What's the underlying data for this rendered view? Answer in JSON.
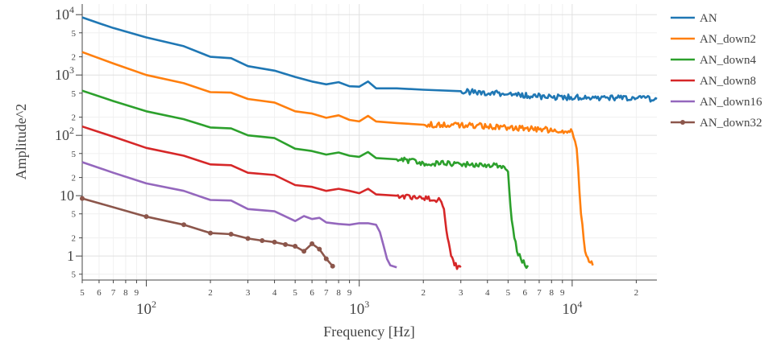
{
  "chart_data": {
    "type": "line",
    "xlabel": "Frequency [Hz]",
    "ylabel": "Amplitude^2",
    "x_scale": "log",
    "y_scale": "log",
    "xlim": [
      50,
      25000
    ],
    "ylim": [
      0.4,
      15000
    ],
    "grid": true,
    "legend_position": "top-right",
    "x_major_ticks": [
      {
        "value": 100,
        "base": "10",
        "exp": "2"
      },
      {
        "value": 1000,
        "base": "10",
        "exp": "3"
      },
      {
        "value": 10000,
        "base": "10",
        "exp": "4"
      }
    ],
    "x_minor_ticks": [
      {
        "value": 50,
        "label": "5"
      },
      {
        "value": 60,
        "label": "6"
      },
      {
        "value": 70,
        "label": "7"
      },
      {
        "value": 80,
        "label": "8"
      },
      {
        "value": 90,
        "label": "9"
      },
      {
        "value": 200,
        "label": "2"
      },
      {
        "value": 300,
        "label": "3"
      },
      {
        "value": 400,
        "label": "4"
      },
      {
        "value": 500,
        "label": "5"
      },
      {
        "value": 600,
        "label": "6"
      },
      {
        "value": 700,
        "label": "7"
      },
      {
        "value": 800,
        "label": "8"
      },
      {
        "value": 900,
        "label": "9"
      },
      {
        "value": 2000,
        "label": "2"
      },
      {
        "value": 3000,
        "label": "3"
      },
      {
        "value": 4000,
        "label": "4"
      },
      {
        "value": 5000,
        "label": "5"
      },
      {
        "value": 6000,
        "label": "6"
      },
      {
        "value": 7000,
        "label": "7"
      },
      {
        "value": 8000,
        "label": "8"
      },
      {
        "value": 9000,
        "label": "9"
      },
      {
        "value": 20000,
        "label": "2"
      }
    ],
    "y_major_ticks": [
      {
        "value": 1,
        "label": "1"
      },
      {
        "value": 10,
        "label": "10"
      },
      {
        "value": 100,
        "base": "10",
        "exp": "2"
      },
      {
        "value": 1000,
        "base": "10",
        "exp": "3"
      },
      {
        "value": 10000,
        "base": "10",
        "exp": "4"
      }
    ],
    "y_minor_ticks": [
      {
        "value": 0.5,
        "label": "5"
      },
      {
        "value": 2,
        "label": "2"
      },
      {
        "value": 5,
        "label": "5"
      },
      {
        "value": 20,
        "label": "2"
      },
      {
        "value": 50,
        "label": "5"
      },
      {
        "value": 200,
        "label": "2"
      },
      {
        "value": 500,
        "label": "5"
      },
      {
        "value": 2000,
        "label": "2"
      },
      {
        "value": 5000,
        "label": "5"
      }
    ],
    "series": [
      {
        "name": "AN",
        "color": "#1f77b4",
        "markers": false,
        "noise_from": 3000,
        "points": [
          [
            50,
            9000
          ],
          [
            60,
            7200
          ],
          [
            70,
            6000
          ],
          [
            100,
            4200
          ],
          [
            150,
            3000
          ],
          [
            200,
            2000
          ],
          [
            250,
            1900
          ],
          [
            300,
            1400
          ],
          [
            400,
            1180
          ],
          [
            500,
            930
          ],
          [
            600,
            780
          ],
          [
            700,
            700
          ],
          [
            800,
            760
          ],
          [
            900,
            650
          ],
          [
            1000,
            640
          ],
          [
            1100,
            780
          ],
          [
            1200,
            600
          ],
          [
            1500,
            600
          ],
          [
            2000,
            570
          ],
          [
            3000,
            540
          ],
          [
            5000,
            480
          ],
          [
            8000,
            430
          ],
          [
            12000,
            420
          ],
          [
            20000,
            410
          ],
          [
            25000,
            400
          ]
        ]
      },
      {
        "name": "AN_down2",
        "color": "#ff7f0e",
        "markers": false,
        "noise_from": 2000,
        "points": [
          [
            50,
            2400
          ],
          [
            70,
            1550
          ],
          [
            100,
            1000
          ],
          [
            150,
            730
          ],
          [
            200,
            520
          ],
          [
            250,
            510
          ],
          [
            300,
            400
          ],
          [
            400,
            350
          ],
          [
            500,
            250
          ],
          [
            600,
            230
          ],
          [
            700,
            195
          ],
          [
            800,
            215
          ],
          [
            900,
            180
          ],
          [
            1000,
            170
          ],
          [
            1100,
            210
          ],
          [
            1200,
            170
          ],
          [
            1500,
            160
          ],
          [
            2000,
            150
          ],
          [
            3000,
            150
          ],
          [
            5000,
            135
          ],
          [
            7000,
            125
          ],
          [
            9000,
            120
          ],
          [
            10000,
            115
          ],
          [
            10500,
            60
          ],
          [
            11000,
            5
          ],
          [
            11500,
            1.2
          ],
          [
            12000,
            0.8
          ],
          [
            12500,
            0.7
          ]
        ]
      },
      {
        "name": "AN_down4",
        "color": "#2ca02c",
        "markers": false,
        "noise_from": 1500,
        "points": [
          [
            50,
            550
          ],
          [
            70,
            370
          ],
          [
            100,
            250
          ],
          [
            150,
            185
          ],
          [
            200,
            135
          ],
          [
            250,
            130
          ],
          [
            300,
            100
          ],
          [
            400,
            90
          ],
          [
            500,
            60
          ],
          [
            600,
            55
          ],
          [
            700,
            48
          ],
          [
            800,
            52
          ],
          [
            900,
            46
          ],
          [
            1000,
            44
          ],
          [
            1100,
            53
          ],
          [
            1200,
            42
          ],
          [
            1500,
            40
          ],
          [
            2000,
            35
          ],
          [
            3000,
            33
          ],
          [
            4000,
            32
          ],
          [
            4800,
            30
          ],
          [
            5000,
            25
          ],
          [
            5200,
            4
          ],
          [
            5500,
            1.2
          ],
          [
            6000,
            0.7
          ],
          [
            6200,
            0.7
          ]
        ]
      },
      {
        "name": "AN_down8",
        "color": "#d62728",
        "markers": false,
        "noise_from": 1300,
        "points": [
          [
            50,
            140
          ],
          [
            70,
            95
          ],
          [
            100,
            62
          ],
          [
            150,
            46
          ],
          [
            200,
            33
          ],
          [
            250,
            32
          ],
          [
            300,
            24
          ],
          [
            400,
            22
          ],
          [
            500,
            15
          ],
          [
            600,
            14
          ],
          [
            700,
            12
          ],
          [
            800,
            13
          ],
          [
            900,
            12
          ],
          [
            1000,
            11
          ],
          [
            1100,
            13
          ],
          [
            1200,
            10.5
          ],
          [
            1500,
            10
          ],
          [
            2000,
            9
          ],
          [
            2400,
            8.5
          ],
          [
            2500,
            6
          ],
          [
            2600,
            2
          ],
          [
            2700,
            1
          ],
          [
            2800,
            0.7
          ],
          [
            3000,
            0.65
          ]
        ]
      },
      {
        "name": "AN_down16",
        "color": "#9467bd",
        "markers": false,
        "noise_from": 0,
        "points": [
          [
            50,
            36
          ],
          [
            70,
            24
          ],
          [
            100,
            16
          ],
          [
            150,
            12
          ],
          [
            200,
            8.5
          ],
          [
            250,
            8.3
          ],
          [
            300,
            6
          ],
          [
            400,
            5.5
          ],
          [
            500,
            3.8
          ],
          [
            550,
            4.6
          ],
          [
            600,
            4.1
          ],
          [
            650,
            4.3
          ],
          [
            700,
            3.6
          ],
          [
            800,
            3.4
          ],
          [
            900,
            3.3
          ],
          [
            1000,
            3.5
          ],
          [
            1100,
            3.5
          ],
          [
            1200,
            3.3
          ],
          [
            1250,
            2.5
          ],
          [
            1300,
            1.5
          ],
          [
            1350,
            0.9
          ],
          [
            1400,
            0.7
          ],
          [
            1500,
            0.65
          ]
        ]
      },
      {
        "name": "AN_down32",
        "color": "#8c564b",
        "markers": true,
        "noise_from": 0,
        "points": [
          [
            50,
            9
          ],
          [
            100,
            4.5
          ],
          [
            150,
            3.3
          ],
          [
            200,
            2.4
          ],
          [
            250,
            2.3
          ],
          [
            300,
            1.95
          ],
          [
            350,
            1.8
          ],
          [
            400,
            1.7
          ],
          [
            450,
            1.55
          ],
          [
            500,
            1.45
          ],
          [
            550,
            1.2
          ],
          [
            600,
            1.6
          ],
          [
            650,
            1.3
          ],
          [
            700,
            0.9
          ],
          [
            750,
            0.68
          ]
        ]
      }
    ]
  }
}
